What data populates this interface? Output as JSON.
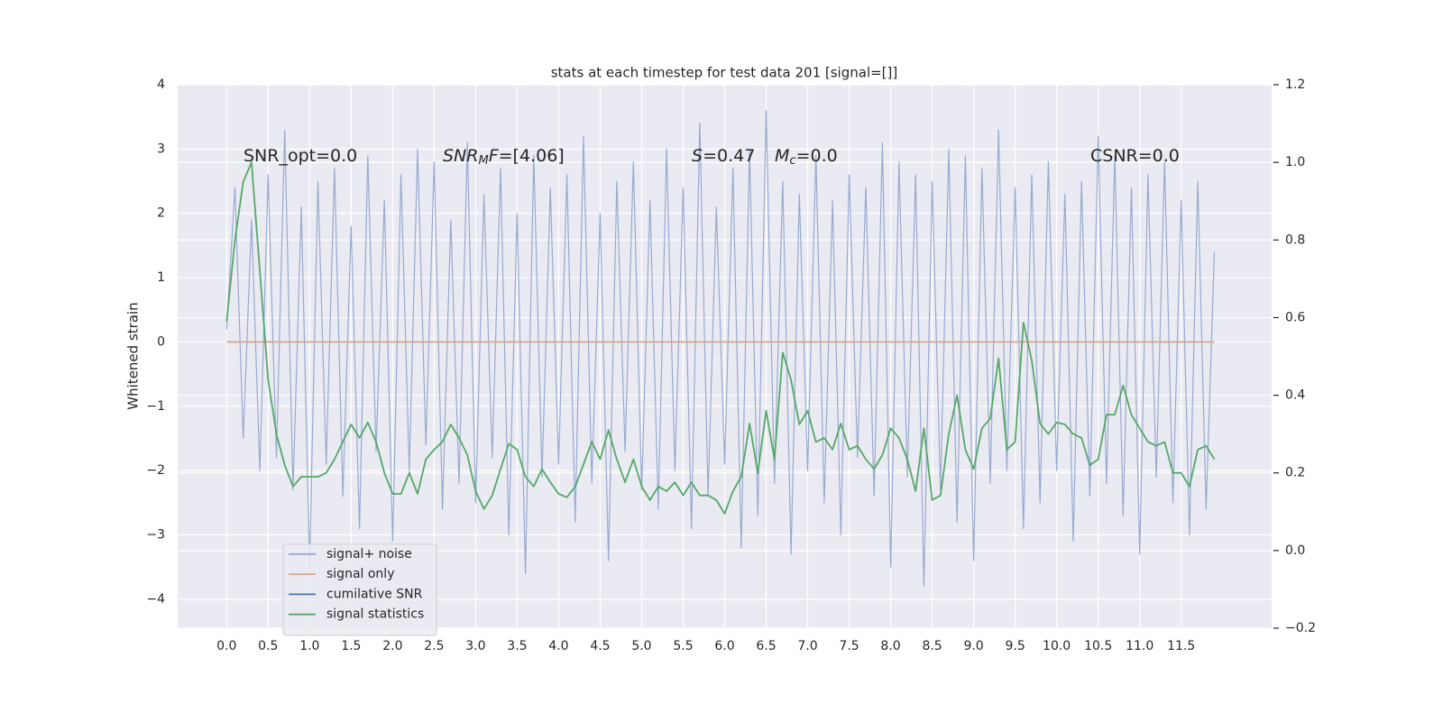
{
  "chart_data": {
    "type": "line",
    "title": "stats at each timestep for test data 201 [signal=[]]",
    "ylabel": "Whitened strain",
    "annotations": [
      [
        "SNR_opt=0.0"
      ],
      [
        "SNR",
        "M",
        "F",
        "=[4.06]"
      ],
      [
        "S",
        "=0.47"
      ],
      [
        "M",
        "c",
        "=0.0"
      ],
      [
        "CSNR=0.0"
      ]
    ],
    "x": [
      0,
      0.1,
      0.2,
      0.3,
      0.4,
      0.5,
      0.6,
      0.7,
      0.8,
      0.9,
      1,
      1.1,
      1.2,
      1.3,
      1.4,
      1.5,
      1.6,
      1.7,
      1.8,
      1.9,
      2,
      2.1,
      2.2,
      2.3,
      2.4,
      2.5,
      2.6,
      2.7,
      2.8,
      2.9,
      3,
      3.1,
      3.2,
      3.3,
      3.4,
      3.5,
      3.6,
      3.7,
      3.8,
      3.9,
      4,
      4.1,
      4.2,
      4.3,
      4.4,
      4.5,
      4.6,
      4.7,
      4.8,
      4.9,
      5,
      5.1,
      5.2,
      5.3,
      5.4,
      5.5,
      5.6,
      5.7,
      5.8,
      5.9,
      6,
      6.1,
      6.2,
      6.3,
      6.4,
      6.5,
      6.6,
      6.7,
      6.8,
      6.9,
      7,
      7.1,
      7.2,
      7.3,
      7.4,
      7.5,
      7.6,
      7.7,
      7.8,
      7.9,
      8,
      8.1,
      8.2,
      8.3,
      8.4,
      8.5,
      8.6,
      8.7,
      8.8,
      8.9,
      9,
      9.1,
      9.2,
      9.3,
      9.4,
      9.5,
      9.6,
      9.7,
      9.8,
      9.9,
      10,
      10.1,
      10.2,
      10.3,
      10.4,
      10.5,
      10.6,
      10.7,
      10.8,
      10.9,
      11,
      11.1,
      11.2,
      11.3,
      11.4,
      11.5,
      11.6,
      11.7,
      11.8,
      11.9
    ],
    "series": [
      {
        "name": "signal+ noise",
        "color": "#98aad0",
        "axis": "y",
        "values": [
          0.2,
          2.4,
          -1.5,
          1.9,
          -2.0,
          2.6,
          -1.8,
          3.3,
          -2.3,
          2.1,
          -3.5,
          2.5,
          -1.9,
          2.7,
          -2.4,
          1.8,
          -2.9,
          2.9,
          -1.7,
          2.2,
          -3.1,
          2.6,
          -2.0,
          3.0,
          -1.6,
          2.8,
          -2.6,
          1.9,
          -2.2,
          3.1,
          -2.5,
          2.3,
          -1.8,
          2.7,
          -3.0,
          2.0,
          -3.6,
          2.9,
          -2.1,
          2.4,
          -1.9,
          2.6,
          -2.8,
          3.2,
          -2.2,
          2.0,
          -3.4,
          2.5,
          -1.7,
          2.8,
          -2.3,
          2.2,
          -2.6,
          3.0,
          -2.0,
          2.4,
          -2.9,
          3.4,
          -2.4,
          2.1,
          -1.9,
          2.7,
          -3.2,
          3.0,
          -2.7,
          3.6,
          -2.2,
          2.5,
          -3.3,
          2.3,
          -2.0,
          2.9,
          -2.5,
          2.2,
          -3.0,
          2.6,
          -1.8,
          2.4,
          -2.4,
          3.1,
          -3.5,
          2.8,
          -2.1,
          2.6,
          -3.8,
          2.5,
          -2.3,
          3.0,
          -2.8,
          2.9,
          -3.4,
          2.7,
          -2.2,
          3.3,
          -2.0,
          2.4,
          -2.9,
          2.6,
          -2.5,
          2.8,
          -2.0,
          2.3,
          -3.1,
          2.5,
          -2.4,
          3.2,
          -2.2,
          2.9,
          -2.7,
          2.4,
          -3.3,
          2.6,
          -2.1,
          2.8,
          -2.5,
          2.2,
          -3.0,
          2.5,
          -2.6,
          1.4
        ]
      },
      {
        "name": "signal only",
        "color": "#e3a388",
        "axis": "y",
        "values": [
          0,
          0,
          0,
          0,
          0,
          0,
          0,
          0,
          0,
          0,
          0,
          0,
          0,
          0,
          0,
          0,
          0,
          0,
          0,
          0,
          0,
          0,
          0,
          0,
          0,
          0,
          0,
          0,
          0,
          0,
          0,
          0,
          0,
          0,
          0,
          0,
          0,
          0,
          0,
          0,
          0,
          0,
          0,
          0,
          0,
          0,
          0,
          0,
          0,
          0,
          0,
          0,
          0,
          0,
          0,
          0,
          0,
          0,
          0,
          0,
          0,
          0,
          0,
          0,
          0,
          0,
          0,
          0,
          0,
          0,
          0,
          0,
          0,
          0,
          0,
          0,
          0,
          0,
          0,
          0,
          0,
          0,
          0,
          0,
          0,
          0,
          0,
          0,
          0,
          0,
          0,
          0,
          0,
          0,
          0,
          0,
          0,
          0,
          0,
          0,
          0,
          0,
          0,
          0,
          0,
          0,
          0,
          0,
          0,
          0,
          0,
          0,
          0,
          0,
          0,
          0,
          0,
          0,
          0,
          0
        ]
      },
      {
        "name": "cumilative SNR",
        "color": "#4c72b0",
        "axis": "y",
        "values": [
          null,
          null,
          null,
          null,
          null,
          null,
          null,
          null,
          null,
          null,
          null,
          null,
          null,
          null,
          null,
          null,
          null,
          null,
          null,
          null,
          null,
          null,
          null,
          null,
          null,
          null,
          null,
          null,
          null,
          null,
          null,
          null,
          null,
          null,
          null,
          null,
          null,
          null,
          null,
          null,
          null,
          null,
          null,
          null,
          null,
          null,
          null,
          null,
          null,
          null,
          null,
          null,
          null,
          null,
          null,
          null,
          null,
          null,
          null,
          null,
          null,
          null,
          null,
          null,
          null,
          null,
          null,
          null,
          null,
          null,
          null,
          null,
          null,
          null,
          null,
          null,
          null,
          null,
          null,
          null,
          null,
          null,
          null,
          null,
          null,
          null,
          null,
          null,
          null,
          null,
          null,
          null,
          null,
          null,
          null,
          null,
          null,
          null,
          null,
          null,
          null,
          null,
          null,
          null,
          null,
          null,
          null,
          null,
          null,
          null,
          null,
          null,
          null,
          null,
          null,
          null,
          null,
          null,
          null,
          null
        ]
      },
      {
        "name": "signal statistics",
        "color": "#55a868",
        "axis": "y2",
        "values": [
          0.59,
          0.8,
          0.95,
          1.0,
          0.72,
          0.44,
          0.3,
          0.22,
          0.165,
          0.19,
          0.19,
          0.19,
          0.2,
          0.235,
          0.28,
          0.325,
          0.29,
          0.33,
          0.28,
          0.2,
          0.146,
          0.146,
          0.2,
          0.146,
          0.235,
          0.26,
          0.28,
          0.325,
          0.29,
          0.246,
          0.153,
          0.107,
          0.142,
          0.21,
          0.275,
          0.26,
          0.19,
          0.165,
          0.21,
          0.176,
          0.146,
          0.137,
          0.165,
          0.222,
          0.28,
          0.235,
          0.31,
          0.235,
          0.176,
          0.235,
          0.165,
          0.13,
          0.165,
          0.153,
          0.176,
          0.142,
          0.176,
          0.142,
          0.142,
          0.13,
          0.095,
          0.153,
          0.19,
          0.327,
          0.2,
          0.36,
          0.235,
          0.51,
          0.44,
          0.325,
          0.36,
          0.28,
          0.29,
          0.26,
          0.327,
          0.26,
          0.27,
          0.235,
          0.21,
          0.246,
          0.315,
          0.29,
          0.235,
          0.153,
          0.315,
          0.13,
          0.142,
          0.3,
          0.4,
          0.26,
          0.21,
          0.315,
          0.34,
          0.495,
          0.26,
          0.28,
          0.587,
          0.49,
          0.327,
          0.3,
          0.33,
          0.325,
          0.3,
          0.29,
          0.22,
          0.235,
          0.35,
          0.35,
          0.425,
          0.35,
          0.315,
          0.28,
          0.27,
          0.28,
          0.2,
          0.2,
          0.165,
          0.26,
          0.27,
          0.235
        ]
      }
    ],
    "xlim": [
      -0.59,
      12.59
    ],
    "xticks": [
      {
        "value": 0,
        "label": "0.0"
      },
      {
        "value": 0.5,
        "label": "0.5"
      },
      {
        "value": 1,
        "label": "1.0"
      },
      {
        "value": 1.5,
        "label": "1.5"
      },
      {
        "value": 2,
        "label": "2.0"
      },
      {
        "value": 2.5,
        "label": "2.5"
      },
      {
        "value": 3,
        "label": "3.0"
      },
      {
        "value": 3.5,
        "label": "3.5"
      },
      {
        "value": 4,
        "label": "4.0"
      },
      {
        "value": 4.5,
        "label": "4.5"
      },
      {
        "value": 5,
        "label": "5.0"
      },
      {
        "value": 5.5,
        "label": "5.5"
      },
      {
        "value": 6,
        "label": "6.0"
      },
      {
        "value": 6.5,
        "label": "6.5"
      },
      {
        "value": 7,
        "label": "7.0"
      },
      {
        "value": 7.5,
        "label": "7.5"
      },
      {
        "value": 8,
        "label": "8.0"
      },
      {
        "value": 8.5,
        "label": "8.5"
      },
      {
        "value": 9,
        "label": "9.0"
      },
      {
        "value": 9.5,
        "label": "9.5"
      },
      {
        "value": 10,
        "label": "10.0"
      },
      {
        "value": 10.5,
        "label": "10.5"
      },
      {
        "value": 11,
        "label": "11.0"
      },
      {
        "value": 11.5,
        "label": "11.5"
      }
    ],
    "ylim": [
      -4.45,
      4
    ],
    "yticks": [
      {
        "value": -4,
        "label": "−4"
      },
      {
        "value": -3,
        "label": "−3"
      },
      {
        "value": -2,
        "label": "−2"
      },
      {
        "value": -1,
        "label": "−1"
      },
      0,
      1,
      2,
      3,
      4
    ],
    "y2lim": [
      -0.2,
      1.2
    ],
    "y2ticks": [
      {
        "value": -0.2,
        "label": "−0.2"
      },
      {
        "value": 0,
        "label": "0.0"
      },
      {
        "value": 0.2,
        "label": "0.2"
      },
      {
        "value": 0.4,
        "label": "0.4"
      },
      {
        "value": 0.6,
        "label": "0.6"
      },
      {
        "value": 0.8,
        "label": "0.8"
      },
      {
        "value": 1,
        "label": "1.0"
      },
      {
        "value": 1.2,
        "label": "1.2"
      }
    ],
    "grid": true,
    "legend": "lower left"
  }
}
